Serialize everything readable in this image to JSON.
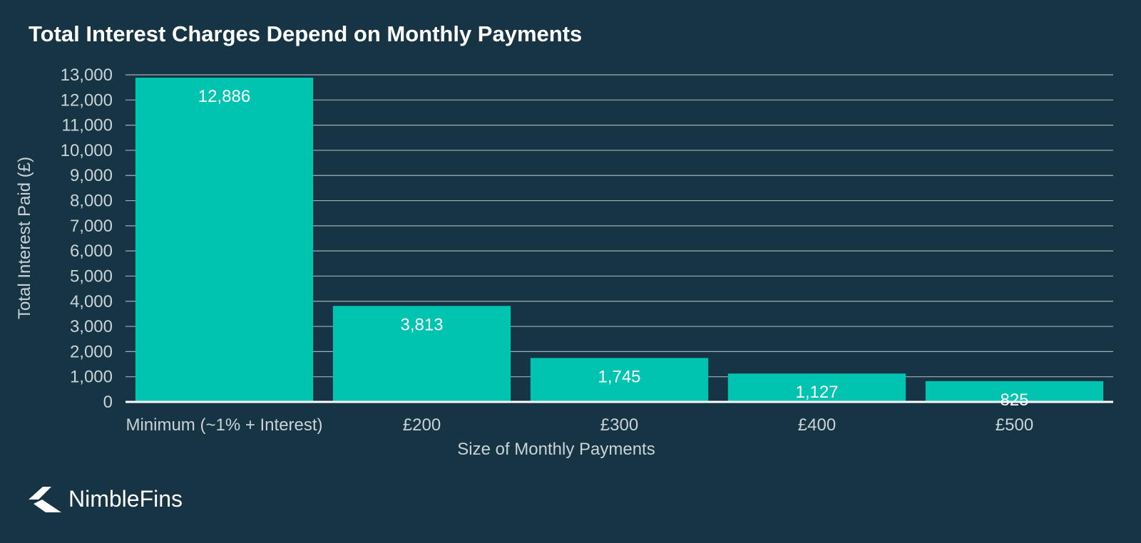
{
  "chart_data": {
    "type": "bar",
    "title": "Total Interest Charges Depend on Monthly Payments",
    "xlabel": "Size of Monthly Payments",
    "ylabel": "Total Interest Paid (£)",
    "categories": [
      "Minimum (~1% + Interest)",
      "£200",
      "£300",
      "£400",
      "£500"
    ],
    "values": [
      12886,
      3813,
      1745,
      1127,
      825
    ],
    "value_labels": [
      "12,886",
      "3,813",
      "1,745",
      "1,127",
      "825"
    ],
    "ylim": [
      0,
      13000
    ],
    "yticks": [
      0,
      1000,
      2000,
      3000,
      4000,
      5000,
      6000,
      7000,
      8000,
      9000,
      10000,
      11000,
      12000,
      13000
    ],
    "ytick_labels": [
      "0",
      "1,000",
      "2,000",
      "3,000",
      "4,000",
      "5,000",
      "6,000",
      "7,000",
      "8,000",
      "9,000",
      "10,000",
      "11,000",
      "12,000",
      "13,000"
    ],
    "grid": true,
    "legend": "none",
    "colors": {
      "background": "#163443",
      "bar": "#00c4b0",
      "gridline": "#9fb0b8",
      "text": "#c9d3d8",
      "data_label": "#ffffff"
    }
  },
  "brand": {
    "name": "NimbleFins",
    "icon": "nimblefins-logo-icon"
  }
}
